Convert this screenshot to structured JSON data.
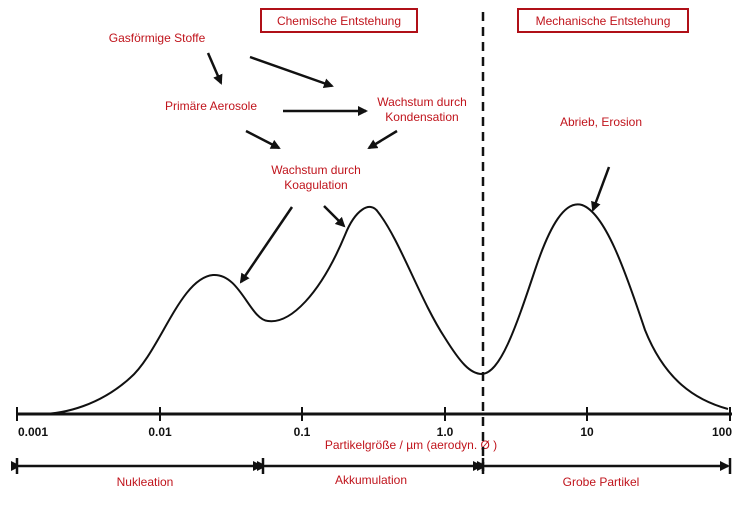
{
  "header_boxes": {
    "chemical": "Chemische Entstehung",
    "mechanical": "Mechanische Entstehung"
  },
  "labels": {
    "gaseous": "Gasförmige Stoffe",
    "primary": "Primäre Aerosole",
    "condensation_1": "Wachstum durch",
    "condensation_2": "Kondensation",
    "coagulation_1": "Wachstum durch",
    "coagulation_2": "Koagulation",
    "abrasion": "Abrieb, Erosion"
  },
  "axis": {
    "ticks": [
      "0.001",
      "0.01",
      "0.1",
      "1.0",
      "10",
      "100"
    ],
    "label": "Partikelgröße / µm (aerodyn. Ø )"
  },
  "ranges": {
    "nucleation": "Nukleation",
    "accumulation": "Akkumulation",
    "coarse": "Grobe Partikel"
  },
  "colors": {
    "label_red": "#c0141c",
    "box_border": "#b01018",
    "ink": "#111111"
  }
}
